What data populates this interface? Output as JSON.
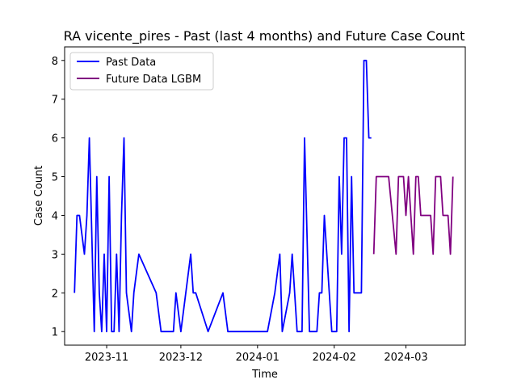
{
  "chart_data": {
    "type": "line",
    "title": "RA vicente_pires - Past (last 4 months) and Future Case Count",
    "xlabel": "Time",
    "ylabel": "Case Count",
    "xlim": [
      "2023-10-15",
      "2024-03-25"
    ],
    "ylim": [
      0.65,
      8.35
    ],
    "x_ticks": [
      "2023-11-01",
      "2023-12-01",
      "2024-01-01",
      "2024-02-01",
      "2024-03-01"
    ],
    "x_tick_labels": [
      "2023-11",
      "2023-12",
      "2024-01",
      "2024-02",
      "2024-03"
    ],
    "y_ticks": [
      1,
      2,
      3,
      4,
      5,
      6,
      7,
      8
    ],
    "grid": false,
    "legend": "top-left",
    "series": [
      {
        "name": "Past Data",
        "color": "#0000ff",
        "points": [
          [
            "2023-10-19",
            2
          ],
          [
            "2023-10-20",
            4
          ],
          [
            "2023-10-21",
            4
          ],
          [
            "2023-10-23",
            3
          ],
          [
            "2023-10-24",
            4
          ],
          [
            "2023-10-25",
            6
          ],
          [
            "2023-10-27",
            1
          ],
          [
            "2023-10-28",
            5
          ],
          [
            "2023-10-29",
            2
          ],
          [
            "2023-10-30",
            1
          ],
          [
            "2023-10-31",
            3
          ],
          [
            "2023-11-01",
            1
          ],
          [
            "2023-11-02",
            5
          ],
          [
            "2023-11-03",
            1
          ],
          [
            "2023-11-04",
            1
          ],
          [
            "2023-11-05",
            3
          ],
          [
            "2023-11-06",
            1
          ],
          [
            "2023-11-07",
            4
          ],
          [
            "2023-11-08",
            6
          ],
          [
            "2023-11-09",
            2
          ],
          [
            "2023-11-11",
            1
          ],
          [
            "2023-11-12",
            2
          ],
          [
            "2023-11-14",
            3
          ],
          [
            "2023-11-21",
            2
          ],
          [
            "2023-11-23",
            1
          ],
          [
            "2023-11-28",
            1
          ],
          [
            "2023-11-29",
            2
          ],
          [
            "2023-12-01",
            1
          ],
          [
            "2023-12-05",
            3
          ],
          [
            "2023-12-06",
            2
          ],
          [
            "2023-12-07",
            2
          ],
          [
            "2023-12-12",
            1
          ],
          [
            "2023-12-18",
            2
          ],
          [
            "2023-12-20",
            1
          ],
          [
            "2024-01-05",
            1
          ],
          [
            "2024-01-08",
            2
          ],
          [
            "2024-01-10",
            3
          ],
          [
            "2024-01-11",
            1
          ],
          [
            "2024-01-14",
            2
          ],
          [
            "2024-01-15",
            3
          ],
          [
            "2024-01-17",
            1
          ],
          [
            "2024-01-19",
            1
          ],
          [
            "2024-01-20",
            6
          ],
          [
            "2024-01-22",
            1
          ],
          [
            "2024-01-25",
            1
          ],
          [
            "2024-01-26",
            2
          ],
          [
            "2024-01-27",
            2
          ],
          [
            "2024-01-28",
            4
          ],
          [
            "2024-01-31",
            1
          ],
          [
            "2024-02-02",
            1
          ],
          [
            "2024-02-03",
            5
          ],
          [
            "2024-02-04",
            3
          ],
          [
            "2024-02-05",
            6
          ],
          [
            "2024-02-06",
            6
          ],
          [
            "2024-02-07",
            1
          ],
          [
            "2024-02-08",
            5
          ],
          [
            "2024-02-09",
            2
          ],
          [
            "2024-02-10",
            2
          ],
          [
            "2024-02-11",
            2
          ],
          [
            "2024-02-12",
            2
          ],
          [
            "2024-02-13",
            8
          ],
          [
            "2024-02-14",
            8
          ],
          [
            "2024-02-15",
            6
          ],
          [
            "2024-02-16",
            6
          ]
        ]
      },
      {
        "name": "Future Data LGBM",
        "color": "#800080",
        "points": [
          [
            "2024-02-17",
            3
          ],
          [
            "2024-02-18",
            5
          ],
          [
            "2024-02-19",
            5
          ],
          [
            "2024-02-20",
            5
          ],
          [
            "2024-02-21",
            5
          ],
          [
            "2024-02-22",
            5
          ],
          [
            "2024-02-23",
            5
          ],
          [
            "2024-02-26",
            3
          ],
          [
            "2024-02-27",
            5
          ],
          [
            "2024-02-28",
            5
          ],
          [
            "2024-02-29",
            5
          ],
          [
            "2024-03-01",
            4
          ],
          [
            "2024-03-02",
            5
          ],
          [
            "2024-03-03",
            4
          ],
          [
            "2024-03-04",
            3
          ],
          [
            "2024-03-05",
            5
          ],
          [
            "2024-03-06",
            5
          ],
          [
            "2024-03-07",
            4
          ],
          [
            "2024-03-08",
            4
          ],
          [
            "2024-03-09",
            4
          ],
          [
            "2024-03-10",
            4
          ],
          [
            "2024-03-11",
            4
          ],
          [
            "2024-03-12",
            3
          ],
          [
            "2024-03-13",
            5
          ],
          [
            "2024-03-14",
            5
          ],
          [
            "2024-03-15",
            5
          ],
          [
            "2024-03-16",
            4
          ],
          [
            "2024-03-17",
            4
          ],
          [
            "2024-03-18",
            4
          ],
          [
            "2024-03-19",
            3
          ],
          [
            "2024-03-20",
            5
          ]
        ]
      }
    ]
  }
}
